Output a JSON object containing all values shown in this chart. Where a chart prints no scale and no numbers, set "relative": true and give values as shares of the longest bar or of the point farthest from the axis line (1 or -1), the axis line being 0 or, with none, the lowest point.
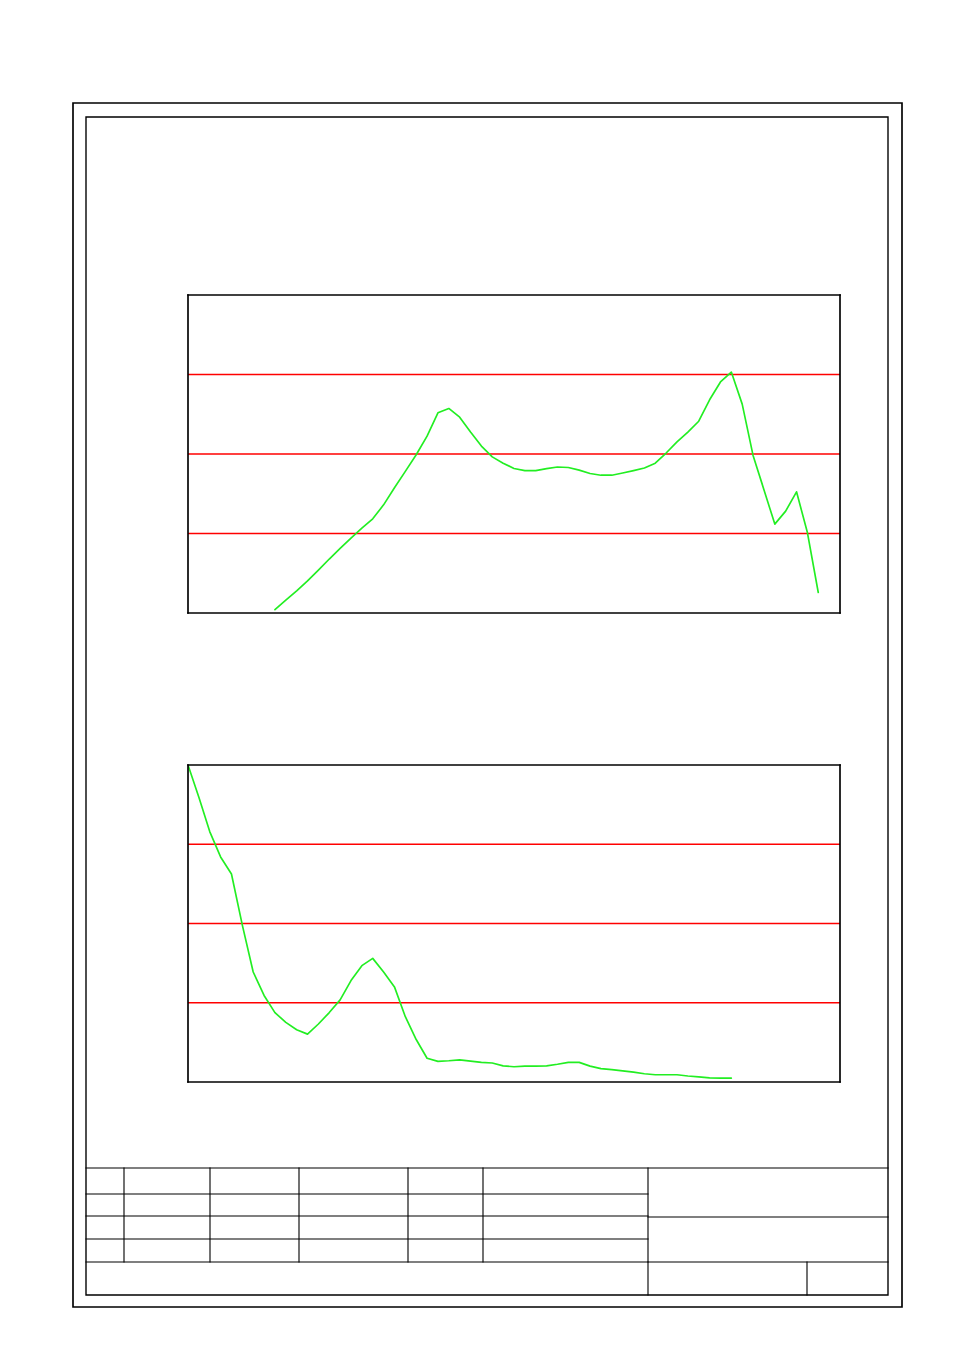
{
  "chart_data": [
    {
      "type": "line",
      "relative": true,
      "categories": [
        null,
        null,
        null,
        null,
        null,
        null,
        null,
        null,
        null,
        null,
        null,
        null,
        null,
        null,
        null,
        null,
        null,
        null,
        null,
        null,
        null,
        null,
        null,
        null,
        null,
        null,
        null,
        null,
        null,
        null,
        null,
        null,
        null,
        null,
        null,
        null,
        null,
        null,
        null,
        null,
        null,
        null,
        null,
        null,
        null,
        null,
        null,
        null,
        null,
        null,
        null,
        null,
        null,
        null,
        null,
        null,
        null,
        null,
        null,
        null,
        null
      ],
      "series": [
        {
          "color": "#22ee22",
          "values": [
            null,
            null,
            null,
            null,
            null,
            null,
            null,
            null,
            0.014,
            0.053,
            0.092,
            0.133,
            0.178,
            0.224,
            0.268,
            0.311,
            0.352,
            0.391,
            0.449,
            0.52,
            0.588,
            0.657,
            0.734,
            0.831,
            0.849,
            0.813,
            0.751,
            0.693,
            0.648,
            0.622,
            0.6,
            0.591,
            0.591,
            0.599,
            0.606,
            0.604,
            0.593,
            0.579,
            0.572,
            0.572,
            0.581,
            0.591,
            0.602,
            0.622,
            0.664,
            0.71,
            0.751,
            0.796,
            0.885,
            0.959,
            1,
            0.867,
            0.654,
            0.512,
            0.369,
            0.423,
            0.503,
            0.334,
            0.085,
            null,
            null
          ]
        }
      ],
      "ref_lines": [
        {
          "axis": "y",
          "value": 0.99,
          "color": "#ff0000"
        },
        {
          "axis": "y",
          "value": 0.66,
          "color": "#ff0000"
        },
        {
          "axis": "y",
          "value": 0.33,
          "color": "#ff0000"
        }
      ],
      "legend": false
    },
    {
      "type": "line",
      "relative": true,
      "categories": [
        null,
        null,
        null,
        null,
        null,
        null,
        null,
        null,
        null,
        null,
        null,
        null,
        null,
        null,
        null,
        null,
        null,
        null,
        null,
        null,
        null,
        null,
        null,
        null,
        null,
        null,
        null,
        null,
        null,
        null,
        null,
        null,
        null,
        null,
        null,
        null,
        null,
        null,
        null,
        null,
        null,
        null,
        null,
        null,
        null,
        null,
        null,
        null,
        null,
        null,
        null,
        null,
        null,
        null,
        null,
        null,
        null,
        null,
        null,
        null,
        null
      ],
      "series": [
        {
          "color": "#22ee22",
          "values": [
            1,
            0.898,
            0.79,
            0.71,
            0.656,
            0.495,
            0.347,
            0.273,
            0.219,
            0.188,
            0.165,
            0.151,
            0.183,
            0.219,
            0.259,
            0.32,
            0.367,
            0.39,
            0.347,
            0.3,
            0.206,
            0.134,
            0.075,
            0.065,
            0.067,
            0.07,
            0.066,
            0.062,
            0.06,
            0.051,
            0.048,
            0.05,
            0.05,
            0.051,
            0.056,
            0.062,
            0.062,
            0.05,
            0.042,
            0.039,
            0.035,
            0.031,
            0.026,
            0.023,
            0.023,
            0.023,
            0.019,
            0.016,
            0.013,
            0.012,
            0.012,
            null,
            null,
            null,
            null,
            null,
            null,
            null,
            null,
            null,
            null
          ]
        }
      ],
      "ref_lines": [
        {
          "axis": "y",
          "value": 0.75,
          "color": "#ff0000"
        },
        {
          "axis": "y",
          "value": 0.5,
          "color": "#ff0000"
        },
        {
          "axis": "y",
          "value": 0.25,
          "color": "#ff0000"
        }
      ],
      "legend": false
    }
  ]
}
